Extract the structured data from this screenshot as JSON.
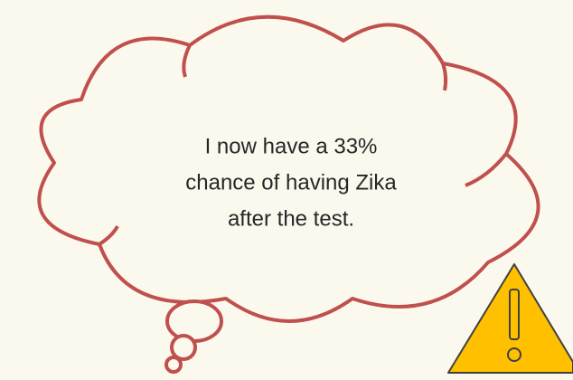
{
  "bubble": {
    "lines": [
      "I now have a 33%",
      "chance of having Zika",
      "after the test."
    ]
  }
}
